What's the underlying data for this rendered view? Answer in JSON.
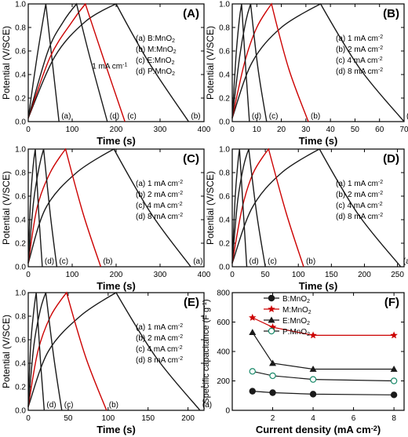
{
  "chart_data": [
    {
      "panel": "(A)",
      "type": "line",
      "xlabel": "Time (s)",
      "ylabel": "Potential (V/SCE)",
      "xlim": [
        0,
        400
      ],
      "ylim": [
        0,
        1.0
      ],
      "xticks": [
        0,
        100,
        200,
        300,
        400
      ],
      "yticks": [
        0.0,
        0.2,
        0.4,
        0.6,
        0.8,
        1.0
      ],
      "legend": [
        "(a) B:MnO2",
        "(b) M:MnO2",
        "(c) E:MnO2",
        "(d) P:MnO2"
      ],
      "legend_position": "right",
      "annotation": "1 mA cm-1",
      "series": [
        {
          "color": "#1a1a1a",
          "end_label": "(a)",
          "points": [
            [
              0,
              0.03
            ],
            [
              20,
              0.55
            ],
            [
              40,
              1.0
            ],
            [
              70,
              0.0
            ]
          ]
        },
        {
          "color": "#1a1a1a",
          "end_label": "(b)",
          "points": [
            [
              0,
              0.03
            ],
            [
              60,
              0.55
            ],
            [
              130,
              0.85
            ],
            [
              200,
              1.0
            ],
            [
              275,
              0.5
            ],
            [
              365,
              0.0
            ]
          ]
        },
        {
          "color": "#cc0000",
          "end_label": "(c)",
          "points": [
            [
              0,
              0.03
            ],
            [
              50,
              0.55
            ],
            [
              100,
              0.85
            ],
            [
              130,
              1.0
            ],
            [
              170,
              0.55
            ],
            [
              220,
              0.0
            ]
          ]
        },
        {
          "color": "#1a1a1a",
          "end_label": "(d)",
          "points": [
            [
              0,
              0.03
            ],
            [
              45,
              0.6
            ],
            [
              80,
              0.85
            ],
            [
              110,
              1.0
            ],
            [
              140,
              0.55
            ],
            [
              180,
              0.0
            ]
          ]
        }
      ]
    },
    {
      "panel": "(B)",
      "type": "line",
      "xlabel": "Time (s)",
      "ylabel": "Potential (V/SCE)",
      "xlim": [
        0,
        70
      ],
      "ylim": [
        0,
        1.0
      ],
      "xticks": [
        0,
        10,
        20,
        30,
        40,
        50,
        60,
        70
      ],
      "yticks": [
        0.0,
        0.2,
        0.4,
        0.6,
        0.8,
        1.0
      ],
      "legend": [
        "(a) 1 mA cm-2",
        "(b) 2 mA cm-2",
        "(c) 4 mA cm-2",
        "(d) 8 mA cm-2"
      ],
      "legend_position": "right",
      "series": [
        {
          "color": "#1a1a1a",
          "end_label": "(a)",
          "points": [
            [
              0,
              0.03
            ],
            [
              8,
              0.5
            ],
            [
              20,
              0.8
            ],
            [
              36,
              1.0
            ],
            [
              52,
              0.45
            ],
            [
              70,
              0.0
            ]
          ]
        },
        {
          "color": "#cc0000",
          "end_label": "(b)",
          "points": [
            [
              0,
              0.03
            ],
            [
              5,
              0.5
            ],
            [
              10,
              0.8
            ],
            [
              16,
              1.0
            ],
            [
              23,
              0.45
            ],
            [
              31,
              0.0
            ]
          ]
        },
        {
          "color": "#1a1a1a",
          "end_label": "(c)",
          "points": [
            [
              0,
              0.03
            ],
            [
              3,
              0.55
            ],
            [
              5.5,
              0.85
            ],
            [
              7.5,
              1.0
            ],
            [
              10.5,
              0.45
            ],
            [
              14,
              0.0
            ]
          ]
        },
        {
          "color": "#1a1a1a",
          "end_label": "(d)",
          "points": [
            [
              0,
              0.03
            ],
            [
              1.5,
              0.55
            ],
            [
              2.8,
              0.85
            ],
            [
              3.8,
              1.0
            ],
            [
              5.5,
              0.45
            ],
            [
              7,
              0.0
            ]
          ]
        }
      ]
    },
    {
      "panel": "(C)",
      "type": "line",
      "xlabel": "Time (s)",
      "ylabel": "Potential (V/SCE)",
      "xlim": [
        0,
        400
      ],
      "ylim": [
        0,
        1.0
      ],
      "xticks": [
        0,
        100,
        200,
        300,
        400
      ],
      "yticks": [
        0.0,
        0.2,
        0.4,
        0.6,
        0.8,
        1.0
      ],
      "legend": [
        "(a) 1 mA cm-2",
        "(b) 2 mA cm-2",
        "(c) 4 mA cm-2",
        "(d) 8 mA cm-2"
      ],
      "legend_position": "right",
      "series": [
        {
          "color": "#1a1a1a",
          "end_label": "(a)",
          "points": [
            [
              0,
              0.03
            ],
            [
              40,
              0.5
            ],
            [
              110,
              0.8
            ],
            [
              195,
              1.0
            ],
            [
              280,
              0.45
            ],
            [
              370,
              0.0
            ]
          ]
        },
        {
          "color": "#cc0000",
          "end_label": "(b)",
          "points": [
            [
              0,
              0.03
            ],
            [
              20,
              0.5
            ],
            [
              50,
              0.8
            ],
            [
              85,
              1.0
            ],
            [
              125,
              0.45
            ],
            [
              165,
              0.0
            ]
          ]
        },
        {
          "color": "#1a1a1a",
          "end_label": "(c)",
          "points": [
            [
              0,
              0.03
            ],
            [
              12,
              0.55
            ],
            [
              25,
              0.85
            ],
            [
              35,
              1.0
            ],
            [
              50,
              0.45
            ],
            [
              65,
              0.0
            ]
          ]
        },
        {
          "color": "#1a1a1a",
          "end_label": "(d)",
          "points": [
            [
              0,
              0.03
            ],
            [
              5,
              0.55
            ],
            [
              11,
              0.85
            ],
            [
              16,
              1.0
            ],
            [
              24,
              0.45
            ],
            [
              32,
              0.0
            ]
          ]
        }
      ]
    },
    {
      "panel": "(D)",
      "type": "line",
      "xlabel": "Time (s)",
      "ylabel": "Potential (V/SCE)",
      "xlim": [
        0,
        260
      ],
      "ylim": [
        0,
        1.0
      ],
      "xticks": [
        0,
        50,
        100,
        150,
        200,
        250
      ],
      "yticks": [
        0.0,
        0.2,
        0.4,
        0.6,
        0.8,
        1.0
      ],
      "legend": [
        "(a) 1 mA cm-2",
        "(b) 2 mA cm-2",
        "(c) 4 mA cm-2",
        "(d) 8 mA cm-2"
      ],
      "legend_position": "right",
      "series": [
        {
          "color": "#1a1a1a",
          "end_label": "(a)",
          "points": [
            [
              0,
              0.03
            ],
            [
              30,
              0.5
            ],
            [
              75,
              0.8
            ],
            [
              132,
              1.0
            ],
            [
              190,
              0.45
            ],
            [
              255,
              0.0
            ]
          ]
        },
        {
          "color": "#cc0000",
          "end_label": "(b)",
          "points": [
            [
              0,
              0.03
            ],
            [
              15,
              0.5
            ],
            [
              32,
              0.8
            ],
            [
              55,
              1.0
            ],
            [
              82,
              0.45
            ],
            [
              108,
              0.0
            ]
          ]
        },
        {
          "color": "#1a1a1a",
          "end_label": "(c)",
          "points": [
            [
              0,
              0.03
            ],
            [
              8,
              0.55
            ],
            [
              17,
              0.85
            ],
            [
              25,
              1.0
            ],
            [
              37,
              0.45
            ],
            [
              50,
              0.0
            ]
          ]
        },
        {
          "color": "#1a1a1a",
          "end_label": "(d)",
          "points": [
            [
              0,
              0.03
            ],
            [
              4,
              0.55
            ],
            [
              8,
              0.85
            ],
            [
              11,
              1.0
            ],
            [
              17,
              0.45
            ],
            [
              22,
              0.0
            ]
          ]
        }
      ]
    },
    {
      "panel": "(E)",
      "type": "line",
      "xlabel": "Time (s)",
      "ylabel": "Potential (V/SCE)",
      "xlim": [
        0,
        220
      ],
      "ylim": [
        0,
        1.0
      ],
      "xticks": [
        0,
        50,
        100,
        150,
        200
      ],
      "yticks": [
        0.0,
        0.2,
        0.4,
        0.6,
        0.8,
        1.0
      ],
      "legend": [
        "(a) 1 mA cm-2",
        "(b) 2 mA cm-2",
        "(c) 4 mA cm-2",
        "(d) 8 mA cm-2"
      ],
      "legend_position": "right",
      "series": [
        {
          "color": "#1a1a1a",
          "end_label": "(a)",
          "points": [
            [
              0,
              0.03
            ],
            [
              25,
              0.5
            ],
            [
              65,
              0.8
            ],
            [
              110,
              1.0
            ],
            [
              160,
              0.45
            ],
            [
              215,
              0.0
            ]
          ]
        },
        {
          "color": "#cc0000",
          "end_label": "(b)",
          "points": [
            [
              0,
              0.03
            ],
            [
              12,
              0.5
            ],
            [
              28,
              0.8
            ],
            [
              48,
              1.0
            ],
            [
              72,
              0.45
            ],
            [
              98,
              0.0
            ]
          ]
        },
        {
          "color": "#1a1a1a",
          "end_label": "(c)",
          "points": [
            [
              0,
              0.03
            ],
            [
              7,
              0.55
            ],
            [
              15,
              0.85
            ],
            [
              22,
              1.0
            ],
            [
              32,
              0.45
            ],
            [
              42,
              0.0
            ]
          ]
        },
        {
          "color": "#1a1a1a",
          "end_label": "(d)",
          "points": [
            [
              0,
              0.03
            ],
            [
              3,
              0.55
            ],
            [
              7,
              0.85
            ],
            [
              10,
              1.0
            ],
            [
              15,
              0.45
            ],
            [
              20,
              0.0
            ]
          ]
        }
      ]
    },
    {
      "panel": "(F)",
      "type": "line",
      "xlabel": "Current density (mA cm-2)",
      "ylabel": "Specific capacitance (F g-1)",
      "xlim": [
        0,
        8.5
      ],
      "ylim": [
        0,
        800
      ],
      "xticks": [
        2,
        4,
        6,
        8
      ],
      "yticks": [
        0,
        200,
        400,
        600,
        800
      ],
      "legend_position": "top-right",
      "x": [
        1,
        2,
        4,
        8
      ],
      "series": [
        {
          "name": "B:MnO2",
          "marker": "circle",
          "filled": true,
          "color": "#1a1a1a",
          "values": [
            130,
            120,
            110,
            105
          ]
        },
        {
          "name": "M:MnO2",
          "marker": "star",
          "filled": true,
          "color": "#cc0000",
          "values": [
            630,
            565,
            510,
            510
          ]
        },
        {
          "name": "E:MnO2",
          "marker": "triangle",
          "filled": true,
          "color": "#1a1a1a",
          "values": [
            530,
            320,
            280,
            280
          ]
        },
        {
          "name": "P:MnO2",
          "marker": "circle",
          "filled": false,
          "color": "#1a8a6a",
          "values": [
            265,
            235,
            210,
            200
          ]
        }
      ]
    }
  ]
}
